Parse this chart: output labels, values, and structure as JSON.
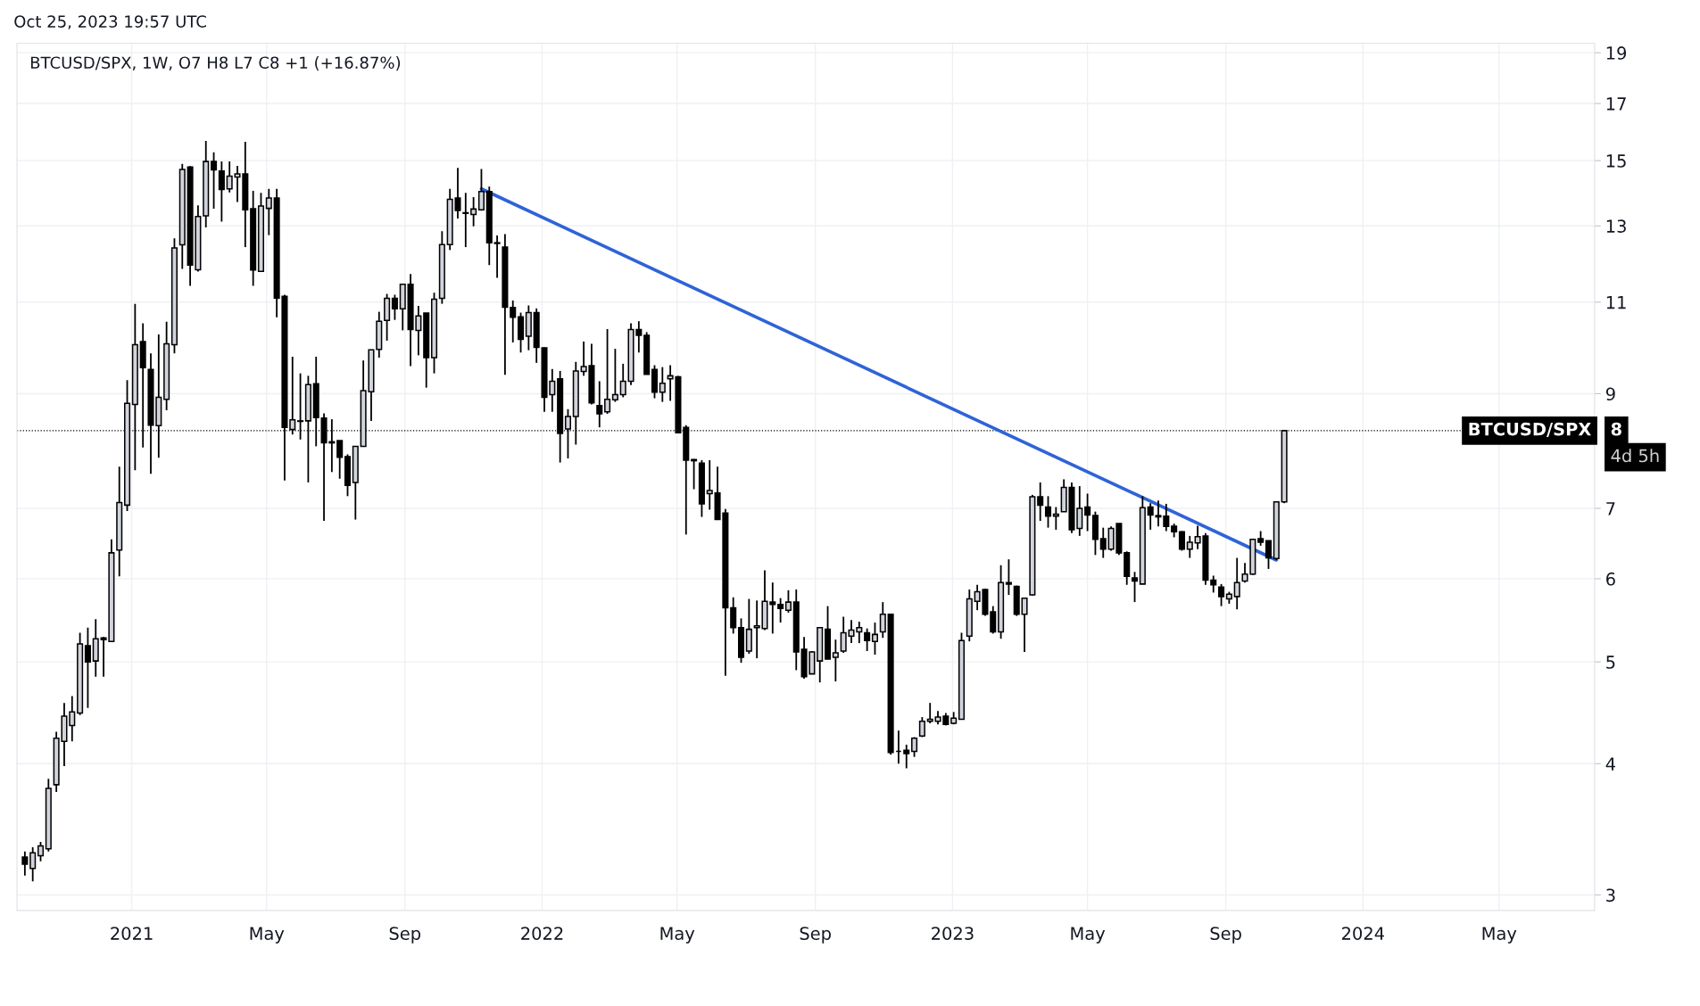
{
  "chart_data": {
    "type": "candlestick",
    "title": "BTCUSD/SPX, 1W, O7 H8 L7 C8 +1 (+16.87%)",
    "annotations": [
      "Oct 25, 2023 19:57 UTC",
      "8",
      "4d 5h"
    ],
    "x": [
      "2020-09-28",
      "2020-10-05",
      "2020-10-12",
      "2020-10-19",
      "2020-10-26",
      "2020-11-02",
      "2020-11-09",
      "2020-11-16",
      "2020-11-23",
      "2020-11-30",
      "2020-12-07",
      "2020-12-14",
      "2020-12-21",
      "2020-12-28",
      "2021-01-04",
      "2021-01-11",
      "2021-01-18",
      "2021-01-25",
      "2021-02-01",
      "2021-02-08",
      "2021-02-15",
      "2021-02-22",
      "2021-03-01",
      "2021-03-08",
      "2021-03-15",
      "2021-03-22",
      "2021-03-29",
      "2021-04-05",
      "2021-04-12",
      "2021-04-19",
      "2021-04-26",
      "2021-05-03",
      "2021-05-10",
      "2021-05-17",
      "2021-05-24",
      "2021-05-31",
      "2021-06-07",
      "2021-06-14",
      "2021-06-21",
      "2021-06-28",
      "2021-07-05",
      "2021-07-12",
      "2021-07-19",
      "2021-07-26",
      "2021-08-02",
      "2021-08-09",
      "2021-08-16",
      "2021-08-23",
      "2021-08-30",
      "2021-09-06",
      "2021-09-13",
      "2021-09-20",
      "2021-09-27",
      "2021-10-04",
      "2021-10-11",
      "2021-10-18",
      "2021-10-25",
      "2021-11-01",
      "2021-11-08",
      "2021-11-15",
      "2021-11-22",
      "2021-11-29",
      "2021-12-06",
      "2021-12-13",
      "2021-12-20",
      "2021-12-27",
      "2022-01-03",
      "2022-01-10",
      "2022-01-17",
      "2022-01-24",
      "2022-01-31",
      "2022-02-07",
      "2022-02-14",
      "2022-02-21",
      "2022-02-28",
      "2022-03-07",
      "2022-03-14",
      "2022-03-21",
      "2022-03-28",
      "2022-04-04",
      "2022-04-11",
      "2022-04-18",
      "2022-04-25",
      "2022-05-02",
      "2022-05-09",
      "2022-05-16",
      "2022-05-23",
      "2022-05-30",
      "2022-06-06",
      "2022-06-13",
      "2022-06-20",
      "2022-06-27",
      "2022-07-04",
      "2022-07-11",
      "2022-07-18",
      "2022-07-25",
      "2022-08-01",
      "2022-08-08",
      "2022-08-15",
      "2022-08-22",
      "2022-08-29",
      "2022-09-05",
      "2022-09-12",
      "2022-09-19",
      "2022-09-26",
      "2022-10-03",
      "2022-10-10",
      "2022-10-17",
      "2022-10-24",
      "2022-10-31",
      "2022-11-07",
      "2022-11-14",
      "2022-11-21",
      "2022-11-28",
      "2022-12-05",
      "2022-12-12",
      "2022-12-19",
      "2022-12-26",
      "2023-01-02",
      "2023-01-09",
      "2023-01-16",
      "2023-01-23",
      "2023-01-30",
      "2023-02-06",
      "2023-02-13",
      "2023-02-20",
      "2023-02-27",
      "2023-03-06",
      "2023-03-13",
      "2023-03-20",
      "2023-03-27",
      "2023-04-03",
      "2023-04-10",
      "2023-04-17",
      "2023-04-24",
      "2023-05-01",
      "2023-05-08",
      "2023-05-15",
      "2023-05-22",
      "2023-05-29",
      "2023-06-05",
      "2023-06-12",
      "2023-06-19",
      "2023-06-26",
      "2023-07-03",
      "2023-07-10",
      "2023-07-17",
      "2023-07-24",
      "2023-07-31",
      "2023-08-07",
      "2023-08-14",
      "2023-08-21",
      "2023-08-28",
      "2023-09-04",
      "2023-09-11",
      "2023-09-18",
      "2023-09-25",
      "2023-10-02",
      "2023-10-09",
      "2023-10-16",
      "2023-10-23"
    ],
    "ohlc": [
      [
        3.26,
        3.3,
        3.13,
        3.21
      ],
      [
        3.18,
        3.33,
        3.09,
        3.29
      ],
      [
        3.27,
        3.37,
        3.23,
        3.34
      ],
      [
        3.32,
        3.87,
        3.3,
        3.79
      ],
      [
        3.82,
        4.29,
        3.76,
        4.23
      ],
      [
        4.2,
        4.57,
        3.98,
        4.44
      ],
      [
        4.35,
        4.64,
        4.2,
        4.48
      ],
      [
        4.47,
        5.33,
        4.45,
        5.2
      ],
      [
        5.18,
        5.39,
        4.52,
        5.0
      ],
      [
        5.01,
        5.49,
        4.84,
        5.26
      ],
      [
        5.27,
        5.28,
        4.84,
        5.25
      ],
      [
        5.23,
        6.54,
        5.23,
        6.35
      ],
      [
        6.39,
        7.67,
        6.03,
        7.09
      ],
      [
        7.05,
        9.27,
        6.96,
        8.81
      ],
      [
        8.79,
        10.96,
        7.61,
        10.02
      ],
      [
        10.09,
        10.5,
        8.0,
        9.53
      ],
      [
        9.49,
        9.83,
        7.55,
        8.4
      ],
      [
        8.39,
        10.25,
        7.82,
        8.93
      ],
      [
        8.89,
        10.54,
        8.68,
        10.04
      ],
      [
        10.02,
        12.65,
        9.83,
        12.39
      ],
      [
        12.47,
        14.89,
        11.83,
        14.71
      ],
      [
        14.79,
        14.82,
        11.4,
        11.93
      ],
      [
        11.81,
        13.6,
        11.76,
        13.27
      ],
      [
        13.29,
        15.66,
        12.96,
        14.97
      ],
      [
        14.97,
        15.28,
        13.5,
        14.7
      ],
      [
        14.66,
        14.97,
        13.12,
        14.08
      ],
      [
        14.1,
        14.97,
        13.99,
        14.5
      ],
      [
        14.47,
        14.83,
        13.7,
        14.57
      ],
      [
        14.57,
        15.63,
        12.41,
        13.47
      ],
      [
        13.5,
        14.04,
        11.4,
        11.8
      ],
      [
        11.77,
        13.98,
        11.75,
        13.58
      ],
      [
        13.51,
        14.1,
        12.74,
        13.82
      ],
      [
        13.82,
        14.1,
        10.64,
        11.1
      ],
      [
        11.14,
        11.18,
        7.44,
        8.36
      ],
      [
        8.32,
        9.76,
        8.23,
        8.5
      ],
      [
        8.47,
        9.41,
        8.14,
        8.48
      ],
      [
        8.48,
        9.36,
        7.41,
        9.18
      ],
      [
        9.2,
        9.76,
        8.02,
        8.54
      ],
      [
        8.53,
        8.62,
        6.81,
        8.08
      ],
      [
        8.1,
        8.51,
        7.58,
        8.08
      ],
      [
        8.12,
        8.12,
        7.47,
        7.83
      ],
      [
        7.84,
        7.88,
        7.19,
        7.36
      ],
      [
        7.41,
        8.02,
        6.83,
        8.02
      ],
      [
        8.02,
        9.68,
        8.02,
        9.06
      ],
      [
        9.04,
        9.91,
        8.48,
        9.91
      ],
      [
        9.92,
        10.77,
        9.74,
        10.55
      ],
      [
        10.57,
        11.2,
        10.11,
        11.09
      ],
      [
        11.09,
        11.18,
        10.58,
        10.84
      ],
      [
        10.84,
        11.44,
        10.34,
        11.44
      ],
      [
        11.44,
        11.7,
        9.56,
        10.36
      ],
      [
        10.34,
        10.91,
        9.79,
        10.67
      ],
      [
        10.74,
        10.74,
        9.12,
        9.74
      ],
      [
        9.74,
        11.23,
        9.41,
        11.07
      ],
      [
        11.09,
        12.85,
        10.96,
        12.48
      ],
      [
        12.48,
        14.1,
        12.33,
        13.78
      ],
      [
        13.82,
        14.76,
        13.21,
        13.45
      ],
      [
        13.38,
        13.98,
        12.41,
        13.36
      ],
      [
        13.33,
        13.85,
        12.99,
        13.49
      ],
      [
        13.47,
        14.73,
        13.44,
        14.02
      ],
      [
        14.02,
        14.17,
        11.93,
        12.53
      ],
      [
        12.53,
        12.73,
        11.6,
        12.51
      ],
      [
        12.41,
        12.77,
        9.38,
        10.88
      ],
      [
        10.87,
        11.04,
        10.07,
        10.64
      ],
      [
        10.65,
        10.75,
        9.85,
        10.14
      ],
      [
        10.21,
        10.92,
        9.9,
        10.75
      ],
      [
        10.75,
        10.85,
        9.63,
        9.96
      ],
      [
        9.95,
        9.96,
        8.65,
        8.93
      ],
      [
        8.98,
        9.5,
        8.65,
        9.25
      ],
      [
        9.3,
        9.46,
        7.74,
        8.25
      ],
      [
        8.33,
        8.7,
        7.81,
        8.56
      ],
      [
        8.56,
        9.65,
        8.05,
        9.46
      ],
      [
        9.45,
        10.09,
        9.36,
        9.55
      ],
      [
        9.57,
        10.04,
        8.79,
        8.82
      ],
      [
        8.77,
        9.25,
        8.36,
        8.61
      ],
      [
        8.65,
        10.37,
        8.61,
        8.89
      ],
      [
        8.88,
        9.93,
        8.84,
        8.98
      ],
      [
        8.98,
        9.61,
        8.93,
        9.25
      ],
      [
        9.25,
        10.5,
        9.17,
        10.36
      ],
      [
        10.36,
        10.55,
        9.85,
        10.23
      ],
      [
        10.23,
        10.3,
        9.39,
        9.39
      ],
      [
        9.49,
        9.58,
        8.91,
        9.03
      ],
      [
        9.03,
        9.54,
        8.84,
        9.21
      ],
      [
        9.3,
        9.58,
        8.86,
        9.36
      ],
      [
        9.34,
        9.36,
        8.25,
        8.26
      ],
      [
        8.36,
        8.4,
        6.61,
        7.78
      ],
      [
        7.79,
        7.8,
        7.3,
        7.77
      ],
      [
        7.73,
        7.78,
        6.87,
        7.07
      ],
      [
        7.23,
        7.78,
        6.98,
        7.28
      ],
      [
        7.24,
        7.67,
        6.83,
        6.83
      ],
      [
        6.93,
        6.99,
        4.85,
        5.63
      ],
      [
        5.63,
        5.76,
        5.32,
        5.39
      ],
      [
        5.39,
        5.5,
        4.99,
        5.05
      ],
      [
        5.12,
        5.74,
        5.09,
        5.37
      ],
      [
        5.39,
        5.72,
        5.04,
        5.41
      ],
      [
        5.38,
        6.11,
        5.36,
        5.71
      ],
      [
        5.7,
        5.95,
        5.32,
        5.67
      ],
      [
        5.67,
        5.75,
        5.45,
        5.62
      ],
      [
        5.6,
        5.85,
        5.57,
        5.7
      ],
      [
        5.7,
        5.86,
        4.91,
        5.11
      ],
      [
        5.14,
        5.28,
        4.82,
        4.84
      ],
      [
        4.87,
        5.12,
        4.87,
        5.11
      ],
      [
        5.01,
        5.39,
        4.78,
        5.39
      ],
      [
        5.37,
        5.65,
        5.03,
        5.03
      ],
      [
        5.05,
        5.25,
        4.79,
        5.1
      ],
      [
        5.12,
        5.52,
        5.1,
        5.33
      ],
      [
        5.29,
        5.48,
        5.21,
        5.36
      ],
      [
        5.34,
        5.46,
        5.21,
        5.39
      ],
      [
        5.33,
        5.38,
        5.12,
        5.24
      ],
      [
        5.23,
        5.45,
        5.08,
        5.31
      ],
      [
        5.34,
        5.7,
        5.27,
        5.55
      ],
      [
        5.55,
        5.55,
        4.08,
        4.1
      ],
      [
        4.11,
        4.3,
        4.0,
        4.11
      ],
      [
        4.12,
        4.17,
        3.96,
        4.09
      ],
      [
        4.11,
        4.24,
        4.06,
        4.23
      ],
      [
        4.25,
        4.43,
        4.24,
        4.39
      ],
      [
        4.39,
        4.57,
        4.37,
        4.41
      ],
      [
        4.39,
        4.49,
        4.36,
        4.43
      ],
      [
        4.44,
        4.47,
        4.35,
        4.36
      ],
      [
        4.37,
        4.48,
        4.36,
        4.42
      ],
      [
        4.41,
        5.33,
        4.41,
        5.24
      ],
      [
        5.29,
        5.86,
        5.23,
        5.74
      ],
      [
        5.71,
        5.92,
        5.6,
        5.83
      ],
      [
        5.86,
        5.87,
        5.53,
        5.55
      ],
      [
        5.58,
        5.65,
        5.32,
        5.34
      ],
      [
        5.34,
        6.18,
        5.26,
        5.95
      ],
      [
        5.95,
        6.26,
        5.79,
        5.93
      ],
      [
        5.9,
        5.91,
        5.53,
        5.55
      ],
      [
        5.55,
        5.75,
        5.11,
        5.75
      ],
      [
        5.79,
        7.21,
        5.78,
        7.18
      ],
      [
        7.18,
        7.41,
        6.81,
        7.05
      ],
      [
        7.02,
        7.19,
        6.71,
        6.88
      ],
      [
        6.88,
        7.02,
        6.68,
        6.91
      ],
      [
        6.95,
        7.46,
        6.95,
        7.33
      ],
      [
        7.33,
        7.41,
        6.63,
        6.68
      ],
      [
        6.7,
        7.35,
        6.59,
        7.0
      ],
      [
        7.02,
        7.23,
        6.66,
        6.9
      ],
      [
        6.89,
        6.95,
        6.32,
        6.54
      ],
      [
        6.55,
        6.71,
        6.28,
        6.4
      ],
      [
        6.4,
        6.73,
        6.38,
        6.7
      ],
      [
        6.77,
        6.77,
        6.32,
        6.35
      ],
      [
        6.35,
        6.37,
        5.92,
        6.03
      ],
      [
        6.01,
        6.09,
        5.7,
        5.97
      ],
      [
        5.93,
        7.19,
        5.93,
        7.01
      ],
      [
        7.02,
        7.08,
        6.68,
        6.9
      ],
      [
        6.89,
        7.12,
        6.73,
        6.87
      ],
      [
        6.88,
        7.07,
        6.66,
        6.73
      ],
      [
        6.73,
        6.77,
        6.57,
        6.65
      ],
      [
        6.65,
        6.66,
        6.38,
        6.4
      ],
      [
        6.4,
        6.59,
        6.28,
        6.5
      ],
      [
        6.49,
        6.74,
        6.4,
        6.58
      ],
      [
        6.59,
        6.63,
        5.92,
        5.98
      ],
      [
        5.98,
        6.04,
        5.82,
        5.92
      ],
      [
        5.89,
        5.93,
        5.65,
        5.77
      ],
      [
        5.74,
        5.83,
        5.68,
        5.8
      ],
      [
        5.77,
        6.28,
        5.61,
        5.95
      ],
      [
        5.97,
        6.21,
        5.95,
        6.06
      ],
      [
        6.06,
        6.54,
        6.05,
        6.54
      ],
      [
        6.55,
        6.66,
        6.45,
        6.5
      ],
      [
        6.52,
        6.52,
        6.13,
        6.28
      ],
      [
        6.27,
        7.1,
        6.25,
        7.1
      ],
      [
        7.1,
        8.3,
        7.08,
        8.3
      ]
    ],
    "series": [
      {
        "type": "line",
        "color": "#2f63d8",
        "x": [
          "2021-11-08",
          "2023-10-16"
        ],
        "values": [
          14.1,
          6.25
        ]
      }
    ],
    "ref_lines": [
      {
        "axis": "y",
        "value": 8.3,
        "label": "BTCUSD/SPX",
        "color": "#000000",
        "line_style": "dotted"
      }
    ],
    "log": true,
    "xlim": [
      "2020-09-21",
      "2024-07-25"
    ],
    "ylim": [
      2.9,
      19.4
    ],
    "xticks": [
      {
        "value": "2021-01-01",
        "label": "2021"
      },
      {
        "value": "2021-05-01",
        "label": "May"
      },
      {
        "value": "2021-09-01",
        "label": "Sep"
      },
      {
        "value": "2022-01-01",
        "label": "2022"
      },
      {
        "value": "2022-05-01",
        "label": "May"
      },
      {
        "value": "2022-09-01",
        "label": "Sep"
      },
      {
        "value": "2023-01-01",
        "label": "2023"
      },
      {
        "value": "2023-05-01",
        "label": "May"
      },
      {
        "value": "2023-09-01",
        "label": "Sep"
      },
      {
        "value": "2024-01-01",
        "label": "2024"
      },
      {
        "value": "2024-05-01",
        "label": "May"
      }
    ],
    "yticks": [
      3,
      4,
      5,
      6,
      7,
      9,
      11,
      13,
      15,
      17,
      19
    ],
    "grid": true,
    "legend": false
  }
}
